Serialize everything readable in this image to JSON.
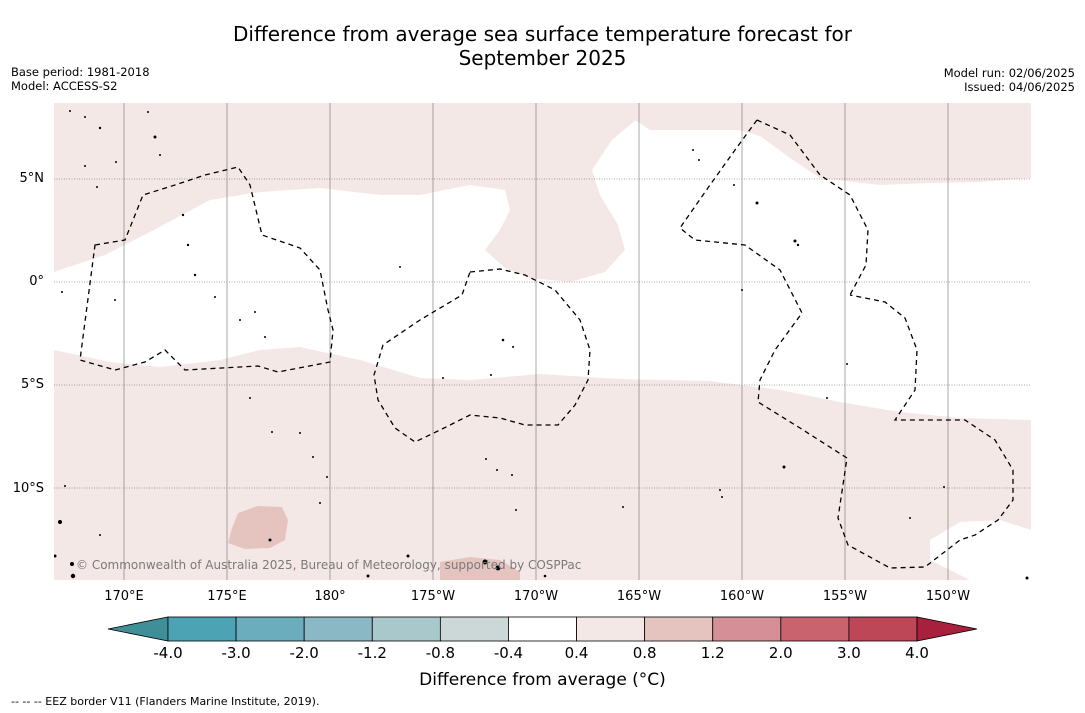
{
  "title_line1": "Difference from average sea surface temperature forecast for",
  "title_line2": "September 2025",
  "meta_left": [
    "Base period: 1981-2018",
    "Model: ACCESS-S2"
  ],
  "meta_right": [
    "Model run: 02/06/2025",
    "Issued: 04/06/2025"
  ],
  "lat_labels": [
    "5°N",
    "0°",
    "5°S",
    "10°S"
  ],
  "lon_labels": [
    "170°E",
    "175°E",
    "180°",
    "175°W",
    "170°W",
    "165°W",
    "160°W",
    "155°W",
    "150°W"
  ],
  "copyright": "© Commonwealth of Australia 2025, Bureau of Meteorology, supported by COSPPac",
  "colorbar": {
    "title": "Difference from average (°C)",
    "ticks": [
      "-4.0",
      "-3.0",
      "-2.0",
      "-1.2",
      "-0.8",
      "-0.4",
      "0.4",
      "0.8",
      "1.2",
      "2.0",
      "3.0",
      "4.0"
    ],
    "colors": [
      "#3f8f98",
      "#4ca3b3",
      "#6badbd",
      "#8ab8c4",
      "#a9c8cb",
      "#ccd8d8",
      "#ffffff",
      "#f4e8e7",
      "#e5c4c0",
      "#d58f96",
      "#c9646f",
      "#bd4756",
      "#a8203b"
    ]
  },
  "legend_footnote": "--  --  -- EEZ border V11 (Flanders Marine Institute, 2019)."
}
